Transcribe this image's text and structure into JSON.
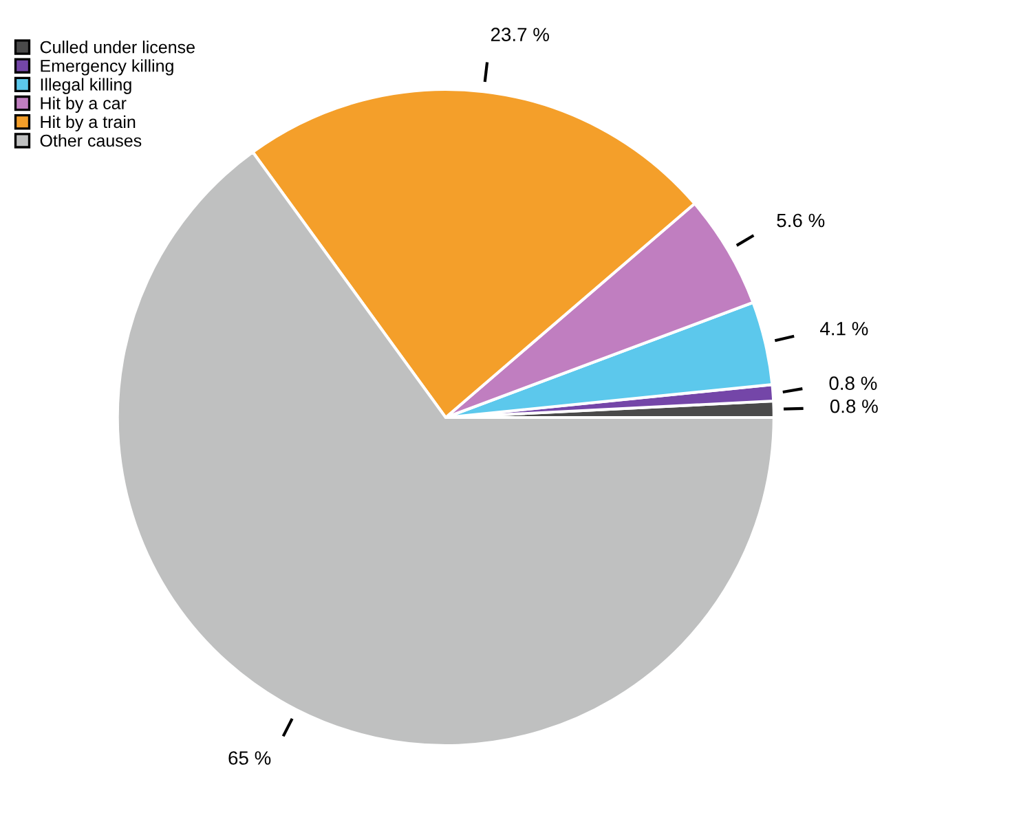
{
  "chart_data": {
    "type": "pie",
    "categories": [
      "Culled under license",
      "Emergency killing",
      "Illegal killing",
      "Hit by a car",
      "Hit by a train",
      "Other causes"
    ],
    "values": [
      0.8,
      0.8,
      4.1,
      5.6,
      23.7,
      65
    ],
    "colors": [
      "#4a4a4a",
      "#7446a8",
      "#5cc8ec",
      "#c07ec0",
      "#f49f2a",
      "#bfc0c0"
    ],
    "value_labels": [
      "0.8 %",
      "0.8 %",
      "4.1 %",
      "5.6 %",
      "23.7 %",
      "65 %"
    ],
    "legend": "top left"
  }
}
